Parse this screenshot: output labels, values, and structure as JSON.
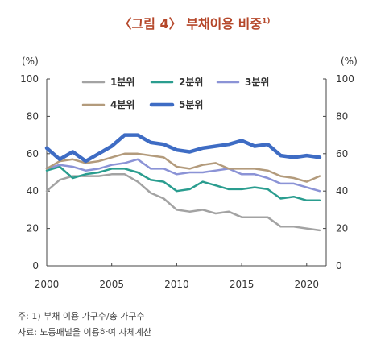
{
  "title": {
    "text": "〈그림 4〉 부채이용 비중",
    "superscript": "1)",
    "color": "#b5472a"
  },
  "notes": [
    "주: 1) 부채 이용 가구수/총 가구수",
    "자료: 노동패널을 이용하여 자체계산"
  ],
  "chart_data": {
    "type": "line",
    "x": [
      2000,
      2001,
      2002,
      2003,
      2004,
      2005,
      2006,
      2007,
      2008,
      2009,
      2010,
      2011,
      2012,
      2013,
      2014,
      2015,
      2016,
      2017,
      2018,
      2019,
      2020,
      2021
    ],
    "xticks": [
      "2000",
      "2005",
      "2010",
      "2015",
      "2020"
    ],
    "xtick_values": [
      2000,
      2005,
      2010,
      2015,
      2020
    ],
    "xlim": [
      2000,
      2021.5
    ],
    "ylim": [
      0,
      100
    ],
    "yticks": [
      "0",
      "20",
      "40",
      "60",
      "80",
      "100"
    ],
    "ytick_values": [
      0,
      20,
      40,
      60,
      80,
      100
    ],
    "left_unit": "(%)",
    "right_unit": "(%)",
    "grid": false,
    "legend_position": "top",
    "series": [
      {
        "name": "1분위",
        "color": "#a3a3a3",
        "width": 2.5,
        "values": [
          40,
          46,
          48,
          48,
          48,
          49,
          49,
          45,
          39,
          36,
          30,
          29,
          30,
          28,
          29,
          26,
          26,
          26,
          21,
          21,
          20,
          19
        ]
      },
      {
        "name": "2분위",
        "color": "#2a9d8f",
        "width": 2.5,
        "values": [
          51,
          53,
          47,
          49,
          50,
          52,
          52,
          50,
          46,
          45,
          40,
          41,
          45,
          43,
          41,
          41,
          42,
          41,
          36,
          37,
          35,
          35
        ]
      },
      {
        "name": "3분위",
        "color": "#8b93d6",
        "width": 2.5,
        "values": [
          52,
          54,
          53,
          51,
          52,
          54,
          55,
          57,
          52,
          52,
          49,
          50,
          50,
          51,
          52,
          49,
          49,
          47,
          44,
          44,
          42,
          40
        ]
      },
      {
        "name": "4분위",
        "color": "#b39b7c",
        "width": 2.5,
        "values": [
          52,
          56,
          57,
          55,
          56,
          58,
          60,
          60,
          59,
          58,
          53,
          52,
          54,
          55,
          52,
          52,
          52,
          51,
          48,
          47,
          45,
          48
        ]
      },
      {
        "name": "5분위",
        "color": "#3e6cc4",
        "width": 4.5,
        "values": [
          63,
          57,
          61,
          56,
          60,
          64,
          70,
          70,
          66,
          65,
          62,
          61,
          63,
          64,
          65,
          67,
          64,
          65,
          59,
          58,
          59,
          58
        ]
      }
    ]
  }
}
